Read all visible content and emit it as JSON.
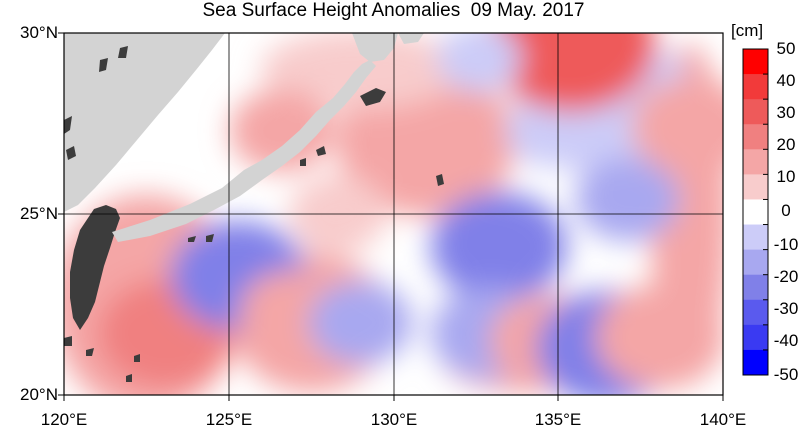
{
  "title": "Sea Surface Height Anomalies  09 May. 2017",
  "lat_labels": [
    "30°N",
    "25°N",
    "20°N"
  ],
  "lon_labels": [
    "120°E",
    "125°E",
    "130°E",
    "135°E",
    "140°E"
  ],
  "colorbar": {
    "unit": "[cm]",
    "ticks": [
      "50",
      "40",
      "30",
      "20",
      "10",
      "0",
      "-10",
      "-20",
      "-30",
      "-40",
      "-50"
    ],
    "colors_top_to_bottom": [
      "#ff0000",
      "#f23a3a",
      "#ee5a5a",
      "#f08080",
      "#f4a6a6",
      "#f8cccc",
      "#ffffff",
      "#ccccf8",
      "#a8a8f0",
      "#8080e8",
      "#5a5aee",
      "#3a3af2",
      "#0000ff"
    ]
  },
  "colors": {
    "land": "#d3d3d3",
    "dark_islands": "#3c3c3c",
    "grid": "#000000"
  },
  "chart_data": {
    "type": "heatmap",
    "title": "Sea Surface Height Anomalies  09 May. 2017",
    "variable": "sea surface height anomaly",
    "unit": "cm",
    "date": "09 May. 2017",
    "lon_range": [
      120,
      140
    ],
    "lat_range": [
      20,
      30
    ],
    "lon_ticks": [
      120,
      125,
      130,
      135,
      140
    ],
    "lat_ticks": [
      20,
      25,
      30
    ],
    "color_range": [
      -50,
      50
    ],
    "color_step": 10,
    "grid": true,
    "features": [
      {
        "lon": 121.8,
        "lat": 21.8,
        "value": 15
      },
      {
        "lon": 123.1,
        "lat": 21.7,
        "value": 22
      },
      {
        "lon": 125.3,
        "lat": 23.3,
        "value": -22
      },
      {
        "lon": 126.9,
        "lat": 22.3,
        "value": 12
      },
      {
        "lon": 129.0,
        "lat": 22.0,
        "value": -12
      },
      {
        "lon": 130.3,
        "lat": 26.4,
        "value": 14
      },
      {
        "lon": 131.6,
        "lat": 26.6,
        "value": 18
      },
      {
        "lon": 133.2,
        "lat": 24.1,
        "value": -22
      },
      {
        "lon": 132.9,
        "lat": 21.7,
        "value": -16
      },
      {
        "lon": 134.7,
        "lat": 21.5,
        "value": 16
      },
      {
        "lon": 134.8,
        "lat": 27.3,
        "value": -8
      },
      {
        "lon": 137.1,
        "lat": 25.4,
        "value": -12
      },
      {
        "lon": 136.5,
        "lat": 21.3,
        "value": -24
      },
      {
        "lon": 138.1,
        "lat": 21.6,
        "value": 20
      },
      {
        "lon": 139.1,
        "lat": 27.4,
        "value": 18
      },
      {
        "lon": 135.4,
        "lat": 29.7,
        "value": 32
      },
      {
        "lon": 132.6,
        "lat": 29.3,
        "value": -6
      },
      {
        "lon": 126.6,
        "lat": 27.3,
        "value": 12
      },
      {
        "lon": 128.3,
        "lat": 25.0,
        "value": 10
      }
    ]
  }
}
